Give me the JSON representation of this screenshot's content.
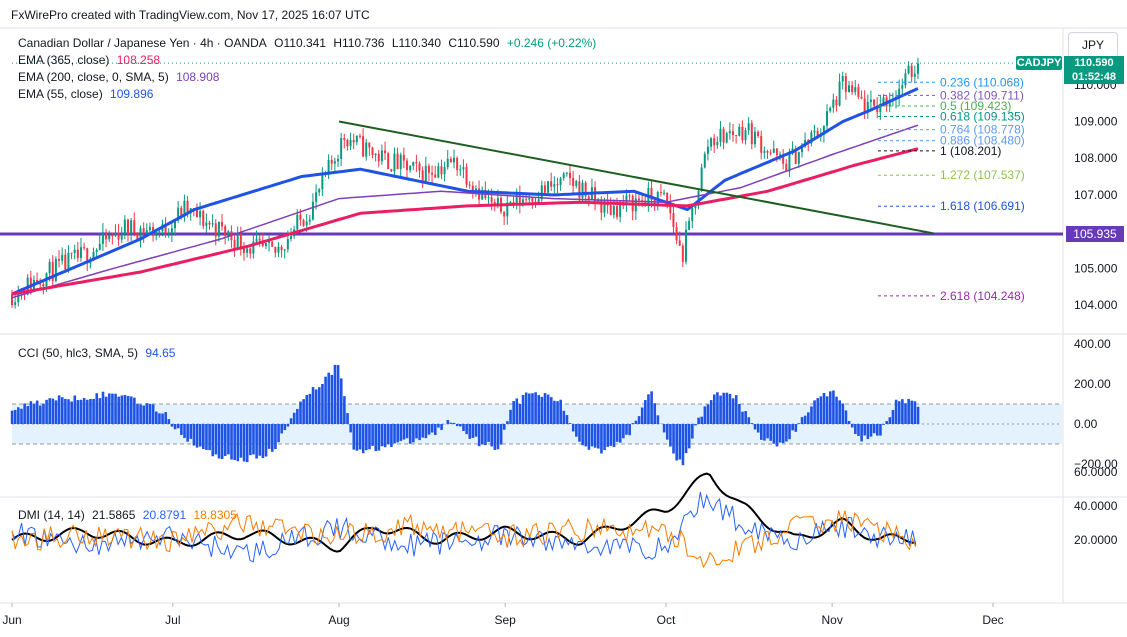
{
  "header": {
    "attribution": "FxWirePro created with TradingView.com, Nov 17, 2025 16:07 UTC"
  },
  "symbol": {
    "name": "Canadian Dollar / Japanese Yen · 4h · OANDA",
    "open": "O110.341",
    "high": "H110.736",
    "low": "L110.340",
    "close": "C110.590",
    "change": "+0.246 (+0.22%)",
    "ticker": "CADJPY",
    "price": "110.590",
    "countdown": "01:52:48",
    "currency": "JPY"
  },
  "indicators": {
    "ema365": {
      "label": "EMA (365, close)",
      "value": "108.258",
      "color": "#e91e63"
    },
    "ema200": {
      "label": "EMA (200, close, 0, SMA, 5)",
      "value": "108.908",
      "color": "#7e3fb8"
    },
    "ema55": {
      "label": "EMA (55, close)",
      "value": "109.896",
      "color": "#1e53e5"
    },
    "cci": {
      "label": "CCI (50, hlc3, SMA, 5)",
      "value": "94.65",
      "color": "#1e53e5"
    },
    "dmi": {
      "label": "DMI (14, 14)",
      "adx": "21.5865",
      "plus_di": "20.8791",
      "minus_di": "18.8305",
      "colors": {
        "adx": "#000000",
        "plus": "#2962ff",
        "minus": "#f57c00"
      }
    }
  },
  "horizontal_level": {
    "value": 105.935,
    "label": "105.935",
    "color": "#673ab7"
  },
  "fib_levels": [
    {
      "label": "0.236 (110.068)",
      "value": 110.068,
      "color": "#2196f3"
    },
    {
      "label": "0.382 (109.711)",
      "value": 109.711,
      "color": "#7e57c2"
    },
    {
      "label": "0.5 (109.423)",
      "value": 109.423,
      "color": "#4caf50"
    },
    {
      "label": "0.618 (109.135)",
      "value": 109.135,
      "color": "#009688"
    },
    {
      "label": "0.764 (108.778)",
      "value": 108.778,
      "color": "#5b9cf6"
    },
    {
      "label": "0.886 (108.480)",
      "value": 108.48,
      "color": "#5b9cf6"
    },
    {
      "label": "1 (108.201)",
      "value": 108.201,
      "color": "#131722"
    },
    {
      "label": "1.272 (107.537)",
      "value": 107.537,
      "color": "#8bc34a"
    },
    {
      "label": "1.618 (106.691)",
      "value": 106.691,
      "color": "#1e53e5"
    },
    {
      "label": "2.618 (104.248)",
      "value": 104.248,
      "color": "#9c27b0"
    }
  ],
  "trendline": {
    "from": {
      "date": "Aug 1",
      "value": 109.0
    },
    "to": {
      "date": "Nov 20",
      "value": 105.95
    },
    "color": "#1e5e20"
  },
  "chart_data": [
    {
      "type": "candlestick",
      "title": "",
      "x_ticks": [
        "Jun",
        "Jul",
        "Aug",
        "Sep",
        "Oct",
        "Nov",
        "Dec"
      ],
      "y_ticks": [
        "104.000",
        "105.000",
        "106.000",
        "107.000",
        "108.000",
        "109.000",
        "110.000"
      ],
      "ylim": [
        103.6,
        110.8
      ],
      "close_path": [
        [
          "Jun 1",
          104.3
        ],
        [
          "Jun 8",
          104.9
        ],
        [
          "Jun 15",
          105.4
        ],
        [
          "Jun 22",
          106.1
        ],
        [
          "Jun 29",
          106.0
        ],
        [
          "Jul 3",
          106.6
        ],
        [
          "Jul 8",
          106.2
        ],
        [
          "Jul 15",
          105.6
        ],
        [
          "Jul 20",
          105.4
        ],
        [
          "Jul 27",
          106.7
        ],
        [
          "Aug 2",
          108.6
        ],
        [
          "Aug 9",
          108.0
        ],
        [
          "Aug 16",
          107.6
        ],
        [
          "Aug 23",
          107.9
        ],
        [
          "Aug 30",
          106.6
        ],
        [
          "Sep 6",
          107.0
        ],
        [
          "Sep 13",
          107.4
        ],
        [
          "Sep 20",
          106.6
        ],
        [
          "Sep 27",
          106.9
        ],
        [
          "Oct 1",
          106.9
        ],
        [
          "Oct 4",
          105.3
        ],
        [
          "Oct 9",
          108.5
        ],
        [
          "Oct 16",
          108.8
        ],
        [
          "Oct 23",
          107.8
        ],
        [
          "Oct 30",
          108.8
        ],
        [
          "Nov 3",
          110.0
        ],
        [
          "Nov 8",
          109.3
        ],
        [
          "Nov 13",
          109.8
        ],
        [
          "Nov 17",
          110.59
        ]
      ],
      "series": [
        {
          "name": "EMA (55, close)",
          "points": [
            [
              "Jun 1",
              104.3
            ],
            [
              "Jun 25",
              105.8
            ],
            [
              "Jul 5",
              106.6
            ],
            [
              "Jul 25",
              107.5
            ],
            [
              "Aug 5",
              107.7
            ],
            [
              "Aug 25",
              107.1
            ],
            [
              "Sep 10",
              107.0
            ],
            [
              "Sep 25",
              107.1
            ],
            [
              "Oct 1",
              106.8
            ],
            [
              "Oct 5",
              106.6
            ],
            [
              "Oct 12",
              107.4
            ],
            [
              "Oct 25",
              108.2
            ],
            [
              "Nov 3",
              109.0
            ],
            [
              "Nov 8",
              109.3
            ],
            [
              "Nov 17",
              109.9
            ]
          ]
        },
        {
          "name": "EMA (200, close, 0, SMA, 5)",
          "points": [
            [
              "Jun 1",
              104.2
            ],
            [
              "Jun 20",
              105.0
            ],
            [
              "Jul 10",
              105.8
            ],
            [
              "Aug 1",
              106.9
            ],
            [
              "Aug 20",
              107.1
            ],
            [
              "Sep 10",
              106.9
            ],
            [
              "Oct 1",
              106.8
            ],
            [
              "Oct 15",
              107.2
            ],
            [
              "Nov 1",
              108.1
            ],
            [
              "Nov 17",
              108.9
            ]
          ]
        },
        {
          "name": "EMA (365, close)",
          "points": [
            [
              "Jun 1",
              104.3
            ],
            [
              "Jun 25",
              104.9
            ],
            [
              "Jul 15",
              105.6
            ],
            [
              "Aug 5",
              106.5
            ],
            [
              "Aug 25",
              106.7
            ],
            [
              "Sep 15",
              106.8
            ],
            [
              "Oct 5",
              106.7
            ],
            [
              "Oct 20",
              107.1
            ],
            [
              "Nov 5",
              107.8
            ],
            [
              "Nov 17",
              108.26
            ]
          ]
        }
      ]
    },
    {
      "type": "bar",
      "title": "",
      "y_ticks": [
        "400.00",
        "200.00",
        "0.00",
        "−200.00"
      ],
      "ylim": [
        -300,
        400
      ],
      "band": [
        -100,
        100
      ],
      "points": [
        [
          "Jun 1",
          80
        ],
        [
          "Jun 8",
          120
        ],
        [
          "Jun 15",
          140
        ],
        [
          "Jun 22",
          150
        ],
        [
          "Jun 29",
          60
        ],
        [
          "Jul 3",
          -60
        ],
        [
          "Jul 8",
          -150
        ],
        [
          "Jul 15",
          -180
        ],
        [
          "Jul 20",
          -130
        ],
        [
          "Jul 25",
          130
        ],
        [
          "Jul 28",
          190
        ],
        [
          "Aug 1",
          300
        ],
        [
          "Aug 4",
          -150
        ],
        [
          "Aug 9",
          -110
        ],
        [
          "Aug 14",
          -90
        ],
        [
          "Aug 18",
          -60
        ],
        [
          "Aug 22",
          20
        ],
        [
          "Aug 27",
          -90
        ],
        [
          "Aug 31",
          -120
        ],
        [
          "Sep 2",
          90
        ],
        [
          "Sep 6",
          160
        ],
        [
          "Sep 11",
          120
        ],
        [
          "Sep 15",
          -100
        ],
        [
          "Sep 19",
          -130
        ],
        [
          "Sep 24",
          -60
        ],
        [
          "Sep 28",
          180
        ],
        [
          "Oct 1",
          -60
        ],
        [
          "Oct 4",
          -220
        ],
        [
          "Oct 7",
          20
        ],
        [
          "Oct 10",
          150
        ],
        [
          "Oct 14",
          140
        ],
        [
          "Oct 18",
          -60
        ],
        [
          "Oct 22",
          -110
        ],
        [
          "Oct 25",
          -40
        ],
        [
          "Oct 29",
          140
        ],
        [
          "Nov 2",
          150
        ],
        [
          "Nov 6",
          -80
        ],
        [
          "Nov 10",
          -40
        ],
        [
          "Nov 13",
          120
        ],
        [
          "Nov 17",
          94.65
        ]
      ]
    },
    {
      "type": "line",
      "title": "",
      "y_ticks": [
        "60.0000",
        "40.0000",
        "20.0000"
      ],
      "ylim": [
        0,
        66
      ],
      "series": [
        {
          "name": "ADX",
          "points": [
            [
              "Jun 1",
              20
            ],
            [
              "Jun 15",
              25
            ],
            [
              "Jul 1",
              18
            ],
            [
              "Jul 15",
              24
            ],
            [
              "Aug 1",
              16
            ],
            [
              "Aug 8",
              28
            ],
            [
              "Aug 20",
              20
            ],
            [
              "Sep 1",
              25
            ],
            [
              "Sep 15",
              20
            ],
            [
              "Oct 1",
              38
            ],
            [
              "Oct 9",
              59
            ],
            [
              "Oct 15",
              40
            ],
            [
              "Oct 25",
              20
            ],
            [
              "Nov 3",
              30
            ],
            [
              "Nov 10",
              20
            ],
            [
              "Nov 17",
              21.59
            ]
          ]
        },
        {
          "name": "+DI",
          "points": [
            [
              "Jun 1",
              24
            ],
            [
              "Jun 15",
              17
            ],
            [
              "Jul 1",
              22
            ],
            [
              "Jul 15",
              12
            ],
            [
              "Aug 1",
              27
            ],
            [
              "Aug 15",
              17
            ],
            [
              "Sep 1",
              22
            ],
            [
              "Sep 15",
              17
            ],
            [
              "Oct 1",
              15
            ],
            [
              "Oct 8",
              45
            ],
            [
              "Oct 15",
              30
            ],
            [
              "Oct 25",
              20
            ],
            [
              "Nov 3",
              28
            ],
            [
              "Nov 10",
              22
            ],
            [
              "Nov 17",
              20.88
            ]
          ]
        },
        {
          "name": "−DI",
          "points": [
            [
              "Jun 1",
              19
            ],
            [
              "Jun 15",
              24
            ],
            [
              "Jul 1",
              20
            ],
            [
              "Jul 15",
              30
            ],
            [
              "Aug 1",
              22
            ],
            [
              "Aug 15",
              28
            ],
            [
              "Sep 1",
              22
            ],
            [
              "Sep 15",
              26
            ],
            [
              "Oct 1",
              25
            ],
            [
              "Oct 8",
              9
            ],
            [
              "Oct 15",
              14
            ],
            [
              "Oct 25",
              28
            ],
            [
              "Nov 3",
              32
            ],
            [
              "Nov 10",
              26
            ],
            [
              "Nov 17",
              18.83
            ]
          ]
        }
      ]
    }
  ]
}
